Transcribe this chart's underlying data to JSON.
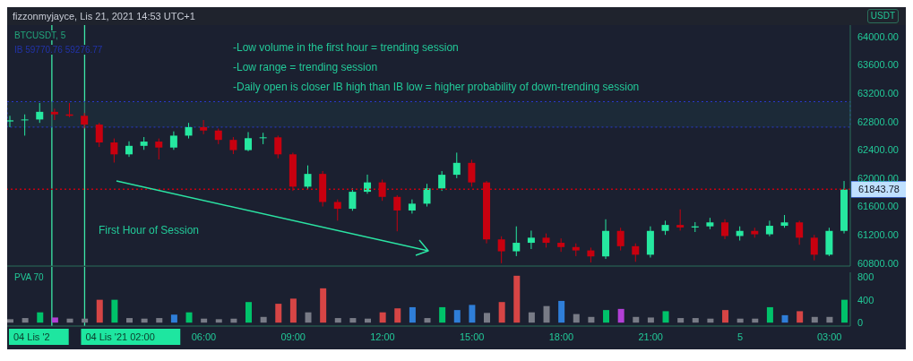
{
  "chart_data": [
    {
      "type": "candlestick",
      "title": "fizzonmyjayce, Lis 21, 2021 14:53 UTC+1",
      "ylabel": "USDT",
      "annotations": [
        "BTCUSDT, 5",
        "IB 59770.76 59276.77",
        "-Low volume in the first hour = trending session",
        "-Low range = trending session",
        "-Daily open is closer IB high than IB low = higher probability of down-trending session",
        "First Hour of Session"
      ],
      "x": [
        "2021-11-03T23:30",
        "2021-11-04T00:00",
        "2021-11-04T00:30",
        "2021-11-04T01:00",
        "2021-11-04T01:30",
        "2021-11-04T02:00",
        "2021-11-04T02:30",
        "2021-11-04T03:00",
        "2021-11-04T03:30",
        "2021-11-04T04:00",
        "2021-11-04T04:30",
        "2021-11-04T05:00",
        "2021-11-04T05:30",
        "2021-11-04T06:00",
        "2021-11-04T06:30",
        "2021-11-04T07:00",
        "2021-11-04T07:30",
        "2021-11-04T08:00",
        "2021-11-04T08:30",
        "2021-11-04T09:00",
        "2021-11-04T09:30",
        "2021-11-04T10:00",
        "2021-11-04T10:30",
        "2021-11-04T11:00",
        "2021-11-04T11:30",
        "2021-11-04T12:00",
        "2021-11-04T12:30",
        "2021-11-04T13:00",
        "2021-11-04T13:30",
        "2021-11-04T14:00",
        "2021-11-04T14:30",
        "2021-11-04T15:00",
        "2021-11-04T15:30",
        "2021-11-04T16:00",
        "2021-11-04T16:30",
        "2021-11-04T17:00",
        "2021-11-04T17:30",
        "2021-11-04T18:00",
        "2021-11-04T18:30",
        "2021-11-04T19:00",
        "2021-11-04T19:30",
        "2021-11-04T20:00",
        "2021-11-04T20:30",
        "2021-11-04T21:00",
        "2021-11-04T21:30",
        "2021-11-04T22:00",
        "2021-11-04T22:30",
        "2021-11-04T23:00",
        "2021-11-04T23:30",
        "2021-11-05T00:00",
        "2021-11-05T00:30",
        "2021-11-05T01:00",
        "2021-11-05T01:30",
        "2021-11-05T02:00",
        "2021-11-05T02:30",
        "2021-11-05T03:00",
        "2021-11-05T03:30"
      ],
      "ohlc": [
        [
          62800,
          62880,
          62720,
          62816
        ],
        [
          62816,
          62900,
          62600,
          62828
        ],
        [
          62828,
          63060,
          62780,
          62936
        ],
        [
          62936,
          62980,
          62820,
          62900
        ],
        [
          62900,
          63060,
          62860,
          62880
        ],
        [
          62880,
          62920,
          62700,
          62756
        ],
        [
          62756,
          62780,
          62440,
          62504
        ],
        [
          62504,
          62560,
          62220,
          62336
        ],
        [
          62336,
          62520,
          62300,
          62456
        ],
        [
          62456,
          62580,
          62400,
          62516
        ],
        [
          62516,
          62560,
          62264,
          62432
        ],
        [
          62432,
          62660,
          62400,
          62600
        ],
        [
          62600,
          62780,
          62560,
          62720
        ],
        [
          62720,
          62820,
          62620,
          62672
        ],
        [
          62672,
          62700,
          62480,
          62540
        ],
        [
          62540,
          62580,
          62340,
          62396
        ],
        [
          62396,
          62650,
          62380,
          62564
        ],
        [
          62564,
          62640,
          62480,
          62576
        ],
        [
          62576,
          62600,
          62280,
          62336
        ],
        [
          62336,
          62360,
          61820,
          61880
        ],
        [
          61880,
          62180,
          61840,
          62060
        ],
        [
          62060,
          62100,
          61600,
          61664
        ],
        [
          61664,
          61700,
          61400,
          61568
        ],
        [
          61568,
          61860,
          61540,
          61808
        ],
        [
          61808,
          62050,
          61780,
          61940
        ],
        [
          61940,
          61980,
          61680,
          61736
        ],
        [
          61736,
          61760,
          61250,
          61544
        ],
        [
          61544,
          61700,
          61500,
          61640
        ],
        [
          61640,
          61920,
          61600,
          61856
        ],
        [
          61856,
          62100,
          61820,
          62048
        ],
        [
          62048,
          62360,
          62000,
          62216
        ],
        [
          62216,
          62260,
          61880,
          61940
        ],
        [
          61940,
          61960,
          61080,
          61136
        ],
        [
          61136,
          61180,
          60800,
          60968
        ],
        [
          60968,
          61320,
          60900,
          61088
        ],
        [
          61088,
          61260,
          61000,
          61160
        ],
        [
          61160,
          61220,
          61020,
          61088
        ],
        [
          61088,
          61150,
          60960,
          61028
        ],
        [
          61028,
          61080,
          60900,
          60980
        ],
        [
          60980,
          61020,
          60810,
          60896
        ],
        [
          60896,
          61420,
          60860,
          61256
        ],
        [
          61256,
          61300,
          60980,
          61040
        ],
        [
          61040,
          61080,
          60820,
          60920
        ],
        [
          60920,
          61320,
          60880,
          61256
        ],
        [
          61256,
          61400,
          61200,
          61340
        ],
        [
          61340,
          61560,
          61260,
          61304
        ],
        [
          61304,
          61380,
          61240,
          61320
        ],
        [
          61320,
          61440,
          61280,
          61376
        ],
        [
          61376,
          61420,
          61140,
          61184
        ],
        [
          61184,
          61320,
          61120,
          61256
        ],
        [
          61256,
          61300,
          61160,
          61208
        ],
        [
          61208,
          61400,
          61180,
          61328
        ],
        [
          61328,
          61480,
          61300,
          61376
        ],
        [
          61376,
          61400,
          61060,
          61160
        ],
        [
          61160,
          61200,
          60840,
          60920
        ],
        [
          60920,
          61300,
          60900,
          61256
        ],
        [
          61256,
          61960,
          61220,
          61840
        ]
      ],
      "colors": [
        "#26e8a0",
        "#26e8a0",
        "#26e8a0",
        "#c8000f",
        "#c8000f",
        "#c8000f",
        "#c8000f",
        "#c8000f",
        "#26e8a0",
        "#26e8a0",
        "#c8000f",
        "#26e8a0",
        "#26e8a0",
        "#c8000f",
        "#c8000f",
        "#c8000f",
        "#26e8a0",
        "#26e8a0",
        "#c8000f",
        "#c8000f",
        "#26e8a0",
        "#c8000f",
        "#c8000f",
        "#26e8a0",
        "#26e8a0",
        "#c8000f",
        "#c8000f",
        "#26e8a0",
        "#26e8a0",
        "#26e8a0",
        "#26e8a0",
        "#c8000f",
        "#c8000f",
        "#c8000f",
        "#26e8a0",
        "#26e8a0",
        "#c8000f",
        "#c8000f",
        "#c8000f",
        "#c8000f",
        "#26e8a0",
        "#c8000f",
        "#c8000f",
        "#26e8a0",
        "#26e8a0",
        "#c8000f",
        "#26e8a0",
        "#26e8a0",
        "#c8000f",
        "#26e8a0",
        "#c8000f",
        "#26e8a0",
        "#26e8a0",
        "#c8000f",
        "#c8000f",
        "#26e8a0",
        "#26e8a0"
      ],
      "xlim": [
        "2021-11-03T23:24",
        "2021-11-05T03:42"
      ],
      "ylim": [
        60760,
        64160
      ],
      "yticks": [
        {
          "value": 60800,
          "label": "60800.00"
        },
        {
          "value": 61200,
          "label": "61200.00"
        },
        {
          "value": 61600,
          "label": "61600.00"
        },
        {
          "value": 62000,
          "label": "62000.00"
        },
        {
          "value": 62400,
          "label": "62400.00"
        },
        {
          "value": 62800,
          "label": "62800.00"
        },
        {
          "value": 63200,
          "label": "63200.00"
        },
        {
          "value": 63600,
          "label": "63600.00"
        },
        {
          "value": 64000,
          "label": "64000.00"
        }
      ],
      "tick_labels": "y",
      "ref_lines": [
        {
          "axis": "x",
          "value": "2021-11-04T00:54",
          "color": "#3de8a8"
        },
        {
          "axis": "x",
          "value": "2021-11-04T02:00",
          "color": "#3de8a8"
        },
        {
          "axis": "y",
          "value": 61843.78,
          "label": "61843.78",
          "color": "#c8000f",
          "line_style": "dotted"
        }
      ],
      "bands": [
        {
          "axis": "y",
          "from": 62720,
          "to": 63080,
          "color": "#1d3340"
        }
      ]
    },
    {
      "type": "bar",
      "title": "PVA 70",
      "x": [
        "2021-11-03T23:30",
        "2021-11-04T00:00",
        "2021-11-04T00:30",
        "2021-11-04T01:00",
        "2021-11-04T01:30",
        "2021-11-04T02:00",
        "2021-11-04T02:30",
        "2021-11-04T03:00",
        "2021-11-04T03:30",
        "2021-11-04T04:00",
        "2021-11-04T04:30",
        "2021-11-04T05:00",
        "2021-11-04T05:30",
        "2021-11-04T06:00",
        "2021-11-04T06:30",
        "2021-11-04T07:00",
        "2021-11-04T07:30",
        "2021-11-04T08:00",
        "2021-11-04T08:30",
        "2021-11-04T09:00",
        "2021-11-04T09:30",
        "2021-11-04T10:00",
        "2021-11-04T10:30",
        "2021-11-04T11:00",
        "2021-11-04T11:30",
        "2021-11-04T12:00",
        "2021-11-04T12:30",
        "2021-11-04T13:00",
        "2021-11-04T13:30",
        "2021-11-04T14:00",
        "2021-11-04T14:30",
        "2021-11-04T15:00",
        "2021-11-04T15:30",
        "2021-11-04T16:00",
        "2021-11-04T16:30",
        "2021-11-04T17:00",
        "2021-11-04T17:30",
        "2021-11-04T18:00",
        "2021-11-04T18:30",
        "2021-11-04T19:00",
        "2021-11-04T19:30",
        "2021-11-04T20:00",
        "2021-11-04T20:30",
        "2021-11-04T21:00",
        "2021-11-04T21:30",
        "2021-11-04T22:00",
        "2021-11-04T22:30",
        "2021-11-04T23:00",
        "2021-11-04T23:30",
        "2021-11-05T00:00",
        "2021-11-05T00:30",
        "2021-11-05T01:00",
        "2021-11-05T01:30",
        "2021-11-05T02:00",
        "2021-11-05T02:30",
        "2021-11-05T03:00",
        "2021-11-05T03:30"
      ],
      "values": [
        60,
        80,
        180,
        90,
        70,
        70,
        400,
        400,
        80,
        70,
        80,
        140,
        180,
        70,
        60,
        70,
        360,
        100,
        330,
        420,
        180,
        600,
        80,
        80,
        70,
        180,
        250,
        270,
        80,
        270,
        220,
        310,
        170,
        360,
        820,
        180,
        290,
        380,
        150,
        100,
        220,
        240,
        100,
        90,
        200,
        80,
        80,
        70,
        220,
        70,
        70,
        270,
        130,
        200,
        100,
        100,
        400
      ],
      "colors": [
        "#787b86",
        "#787b86",
        "#00c26a",
        "#b23fd6",
        "#787b86",
        "#787b86",
        "#d64545",
        "#00c26a",
        "#787b86",
        "#787b86",
        "#787b86",
        "#2f7ed8",
        "#00c26a",
        "#787b86",
        "#787b86",
        "#787b86",
        "#00c26a",
        "#787b86",
        "#d64545",
        "#d64545",
        "#787b86",
        "#d64545",
        "#787b86",
        "#787b86",
        "#787b86",
        "#d64545",
        "#d64545",
        "#2f7ed8",
        "#787b86",
        "#00c26a",
        "#2f7ed8",
        "#2f7ed8",
        "#787b86",
        "#d64545",
        "#d64545",
        "#787b86",
        "#787b86",
        "#2f7ed8",
        "#787b86",
        "#787b86",
        "#00c26a",
        "#b23fd6",
        "#787b86",
        "#787b86",
        "#00c26a",
        "#787b86",
        "#787b86",
        "#787b86",
        "#d64545",
        "#787b86",
        "#787b86",
        "#00c26a",
        "#2f7ed8",
        "#d64545",
        "#787b86",
        "#787b86",
        "#00c26a"
      ],
      "xlim": [
        "2021-11-03T23:24",
        "2021-11-05T03:42"
      ],
      "ylim": [
        -60,
        880
      ],
      "yticks": [
        0,
        400,
        800
      ],
      "xticks": [
        {
          "value": "2021-11-04T06:00",
          "label": "06:00"
        },
        {
          "value": "2021-11-04T09:00",
          "label": "09:00"
        },
        {
          "value": "2021-11-04T12:00",
          "label": "12:00"
        },
        {
          "value": "2021-11-04T15:00",
          "label": "15:00"
        },
        {
          "value": "2021-11-04T18:00",
          "label": "18:00"
        },
        {
          "value": "2021-11-04T21:00",
          "label": "21:00"
        },
        {
          "value": "2021-11-05T00:00",
          "label": "5"
        },
        {
          "value": "2021-11-05T03:00",
          "label": "03:00"
        }
      ],
      "ref_lines": [
        {
          "axis": "x",
          "value": "2021-11-04T00:54",
          "label": "04 Lis '2",
          "color": "#3de8a8"
        },
        {
          "axis": "x",
          "value": "2021-11-04T02:00",
          "label": "04 Lis '21 02:00",
          "color": "#3de8a8"
        }
      ]
    }
  ]
}
